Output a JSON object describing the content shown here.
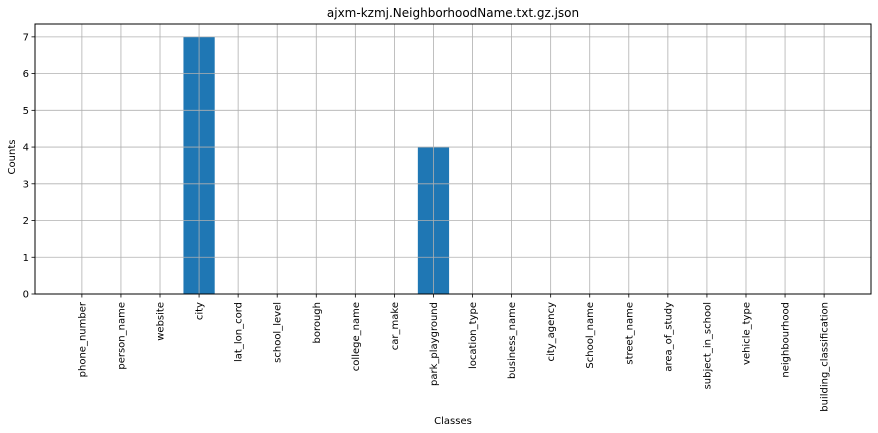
{
  "chart_data": {
    "type": "bar",
    "title": "ajxm-kzmj.NeighborhoodName.txt.gz.json",
    "xlabel": "Classes",
    "ylabel": "Counts",
    "categories": [
      "phone_number",
      "person_name",
      "website",
      "city",
      "lat_lon_cord",
      "school_level",
      "borough",
      "college_name",
      "car_make",
      "park_playground",
      "location_type",
      "business_name",
      "city_agency",
      "School_name",
      "street_name",
      "area_of_study",
      "subject_in_school",
      "vehicle_type",
      "neighbourhood",
      "building_classification"
    ],
    "values": [
      0,
      0,
      0,
      7,
      0,
      0,
      0,
      0,
      0,
      4,
      0,
      0,
      0,
      0,
      0,
      0,
      0,
      0,
      0,
      0
    ],
    "ylim": [
      0,
      7.35
    ],
    "yticks": [
      "0",
      "1",
      "2",
      "3",
      "4",
      "5",
      "6",
      "7"
    ],
    "grid": true,
    "bar_color": "#1f77b4",
    "grid_color": "#b0b0b0"
  }
}
